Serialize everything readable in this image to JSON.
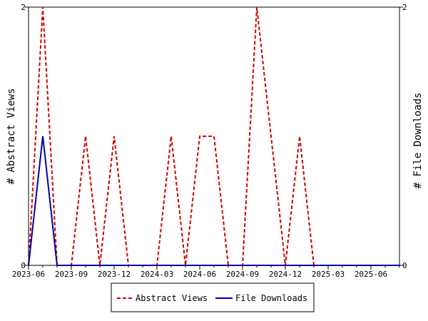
{
  "chart_data": {
    "type": "line",
    "x_type": "date",
    "x": [
      "2023-06",
      "2023-07",
      "2023-08",
      "2023-09",
      "2023-10",
      "2023-11",
      "2023-12",
      "2024-01",
      "2024-02",
      "2024-03",
      "2024-04",
      "2024-05",
      "2024-06",
      "2024-07",
      "2024-08",
      "2024-09",
      "2024-10",
      "2024-11",
      "2024-12",
      "2025-01",
      "2025-02",
      "2025-03",
      "2025-04",
      "2025-05",
      "2025-06",
      "2025-07",
      "2025-08"
    ],
    "xlim": [
      "2023-06",
      "2025-08"
    ],
    "x_ticks": [
      "2023-06",
      "2023-09",
      "2023-12",
      "2024-03",
      "2024-06",
      "2024-09",
      "2024-12",
      "2025-03",
      "2025-06"
    ],
    "series": [
      {
        "name": "Abstract Views",
        "axis": "left",
        "color": "#cc0000",
        "dash": "dashed",
        "values": [
          0,
          2,
          0,
          0,
          1,
          0,
          1,
          0,
          0,
          0,
          1,
          0,
          1,
          1,
          0,
          0,
          2,
          1,
          0,
          1,
          0,
          0,
          0,
          0,
          0,
          0,
          0
        ]
      },
      {
        "name": "File Downloads",
        "axis": "right",
        "color": "#0000aa",
        "dash": "solid",
        "values": [
          0,
          1,
          0,
          0,
          0,
          0,
          0,
          0,
          0,
          0,
          0,
          0,
          0,
          0,
          0,
          0,
          0,
          0,
          0,
          0,
          0,
          0,
          0,
          0,
          0,
          0,
          0
        ]
      }
    ],
    "y_left": {
      "label": "# Abstract Views",
      "ylim": [
        0,
        2
      ],
      "ticks": [
        0,
        2
      ]
    },
    "y_right": {
      "label": "# File Downloads",
      "ylim": [
        0,
        2
      ],
      "ticks": [
        0,
        2
      ]
    },
    "legend": {
      "placement": "bottom-center"
    },
    "grid": false
  }
}
